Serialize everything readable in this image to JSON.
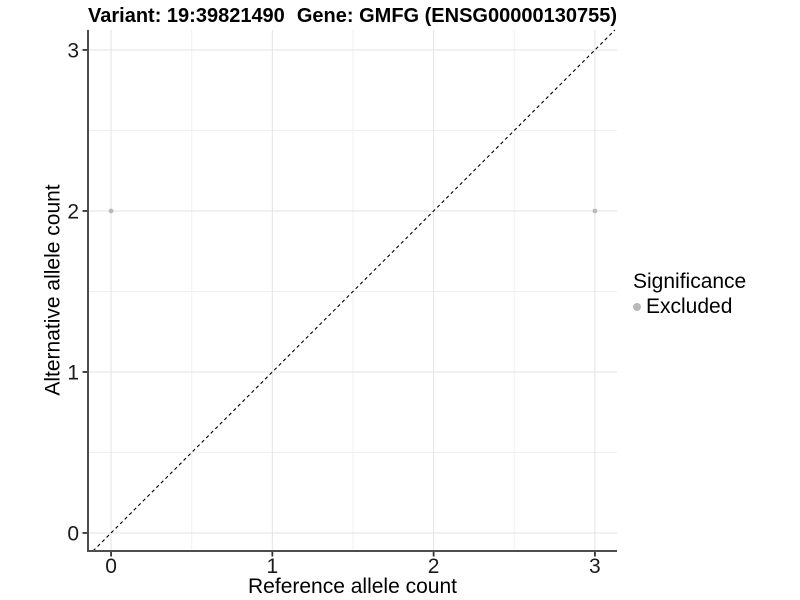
{
  "theme": {
    "background": "#ffffff",
    "grid_major": "#e3e3e3",
    "grid_minor": "#f1f1f1",
    "axis_line": "#4d4d4d",
    "tick_color": "#333333",
    "text_color": "#1a1a1a",
    "point_color": "#b9b9b9",
    "dashed_line_color": "#000000"
  },
  "chart_data": {
    "type": "scatter",
    "title_left": "Variant: 19:39821490",
    "title_right": "Gene: GMFG (ENSG00000130755)",
    "xlabel": "Reference allele count",
    "ylabel": "Alternative allele count",
    "xlim": [
      -0.143,
      3.137
    ],
    "ylim": [
      -0.112,
      3.124
    ],
    "x_ticks": [
      0,
      1,
      2,
      3
    ],
    "y_ticks": [
      0,
      1,
      2,
      3
    ],
    "x_minor_ticks": [
      0.5,
      1.5,
      2.5
    ],
    "y_minor_ticks": [
      0.5,
      1.5,
      2.5
    ],
    "grid": true,
    "identity_line": {
      "type": "abline",
      "slope": 1,
      "intercept": 0,
      "style": "dashed"
    },
    "series": [
      {
        "name": "Excluded",
        "points": [
          {
            "x": 0,
            "y": 2
          },
          {
            "x": 3,
            "y": 2
          }
        ]
      }
    ],
    "legend": {
      "title": "Significance",
      "position": "right",
      "items": [
        {
          "label": "Excluded",
          "color": "#b9b9b9"
        }
      ]
    }
  }
}
